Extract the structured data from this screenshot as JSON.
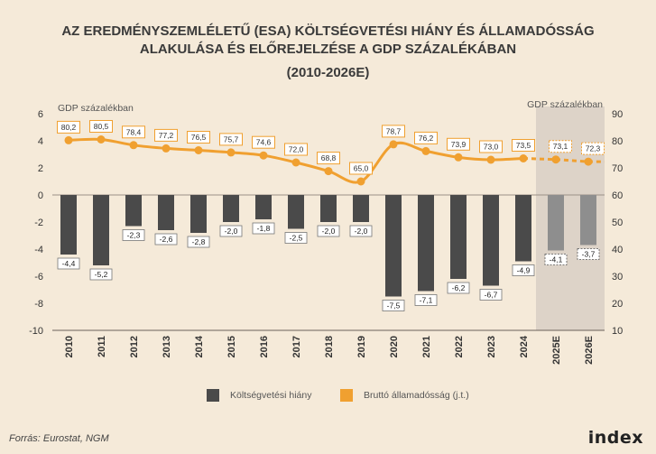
{
  "header": {
    "title_line1": "AZ EREDMÉNYSZEMLÉLETŰ (ESA) KÖLTSÉGVETÉSI HIÁNY ÉS ÁLLAMADÓSSÁG",
    "title_line2": "ALAKULÁSA ÉS ELŐREJELZÉSE A GDP SZÁZALÉKÁBAN",
    "title_line3": "(2010-2026E)"
  },
  "chart_data": {
    "type": "bar",
    "categories": [
      "2010",
      "2011",
      "2012",
      "2013",
      "2014",
      "2015",
      "2016",
      "2017",
      "2018",
      "2019",
      "2020",
      "2021",
      "2022",
      "2023",
      "2024",
      "2025E",
      "2026E"
    ],
    "forecast_categories": [
      "2025E",
      "2026E"
    ],
    "left_axis_label": "GDP százalékban",
    "right_axis_label": "GDP százalékban",
    "left_ylim": [
      -10,
      6
    ],
    "left_ticks": [
      -10,
      -8,
      -6,
      -4,
      -2,
      0,
      2,
      4,
      6
    ],
    "right_ylim": [
      10,
      90
    ],
    "right_ticks": [
      10,
      20,
      30,
      40,
      50,
      60,
      70,
      80,
      90
    ],
    "grid": false,
    "legend_position": "bottom",
    "series": [
      {
        "name": "Költségvetési hiány",
        "axis": "left",
        "kind": "bar",
        "color": "#4a4a4a",
        "forecast_color": "#8e8e8e",
        "values": [
          -4.4,
          -5.2,
          -2.3,
          -2.6,
          -2.8,
          -2.0,
          -1.8,
          -2.5,
          -2.0,
          -2.0,
          -7.5,
          -7.1,
          -6.2,
          -6.7,
          -4.9,
          -4.1,
          -3.7
        ],
        "labels": [
          "-4,4",
          "-5,2",
          "-2,3",
          "-2,6",
          "-2,8",
          "-2,0",
          "-1,8",
          "-2,5",
          "-2,0",
          "-2,0",
          "-7,5",
          "-7,1",
          "-6,2",
          "-6,7",
          "-4,9",
          "-4,1",
          "-3,7"
        ]
      },
      {
        "name": "Bruttó államadósság (j.t.)",
        "axis": "right",
        "kind": "line",
        "color": "#f0a030",
        "values": [
          80.2,
          80.5,
          78.4,
          77.2,
          76.5,
          75.7,
          74.6,
          72.0,
          68.8,
          65.0,
          78.7,
          76.2,
          73.9,
          73.0,
          73.5,
          73.1,
          72.3
        ],
        "labels": [
          "80,2",
          "80,5",
          "78,4",
          "77,2",
          "76,5",
          "75,7",
          "74,6",
          "72,0",
          "68,8",
          "65,0",
          "78,7",
          "76,2",
          "73,9",
          "73,0",
          "73,5",
          "73,1",
          "72,3"
        ]
      }
    ]
  },
  "legend": {
    "deficit_label": "Költségvetési hiány",
    "debt_label": "Bruttó államadósság (j.t.)",
    "deficit_color": "#4a4a4a",
    "debt_color": "#f0a030"
  },
  "footer": {
    "source": "Forrás: Eurostat, NGM",
    "logo": "index"
  }
}
